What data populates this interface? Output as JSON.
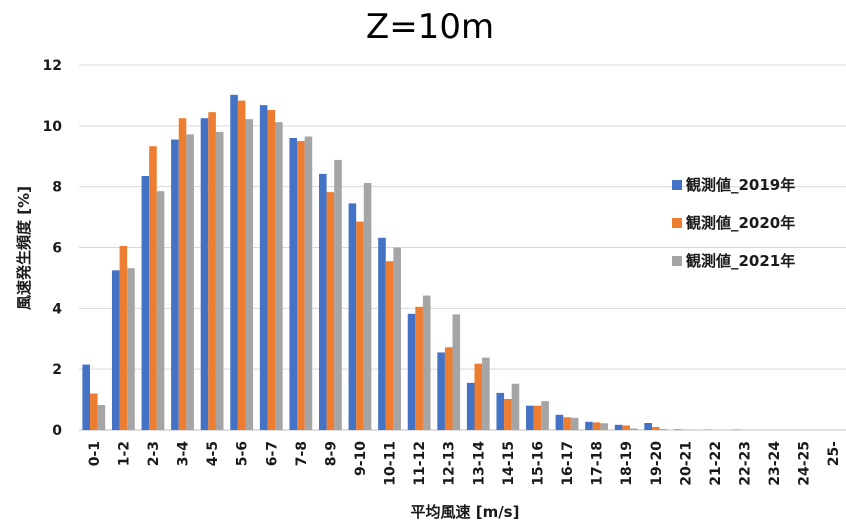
{
  "chart_data": {
    "type": "bar",
    "title": "Z=10m",
    "xlabel": "平均風速 [m/s]",
    "ylabel": "風速発生頻度 [%]",
    "ylim": [
      0,
      12
    ],
    "yticks": [
      0,
      2,
      4,
      6,
      8,
      10,
      12
    ],
    "grid": true,
    "legend_position": "right",
    "categories": [
      "0-1",
      "1-2",
      "2-3",
      "3-4",
      "4-5",
      "5-6",
      "6-7",
      "7-8",
      "8-9",
      "9-10",
      "10-11",
      "11-12",
      "12-13",
      "13-14",
      "14-15",
      "15-16",
      "16-17",
      "17-18",
      "18-19",
      "19-20",
      "20-21",
      "21-22",
      "22-23",
      "23-24",
      "24-25",
      "25-"
    ],
    "series": [
      {
        "name": "観測値_2019年",
        "color": "#4472c4",
        "values": [
          2.15,
          5.25,
          8.35,
          9.55,
          10.25,
          11.02,
          10.68,
          9.6,
          8.42,
          7.45,
          6.32,
          3.82,
          2.55,
          1.55,
          1.22,
          0.8,
          0.5,
          0.27,
          0.17,
          0.23,
          0.02,
          0.01,
          0.01,
          0,
          0,
          0
        ]
      },
      {
        "name": "観測値_2020年",
        "color": "#ed7d31",
        "values": [
          1.2,
          6.05,
          9.33,
          10.25,
          10.45,
          10.83,
          10.52,
          9.5,
          7.82,
          6.85,
          5.55,
          4.05,
          2.72,
          2.18,
          1.02,
          0.8,
          0.42,
          0.25,
          0.15,
          0.1,
          0.01,
          0,
          0,
          0,
          0,
          0
        ]
      },
      {
        "name": "観測値_2021年",
        "color": "#a5a5a5",
        "values": [
          0.82,
          5.32,
          7.85,
          9.72,
          9.8,
          10.22,
          10.12,
          9.65,
          8.88,
          8.12,
          6.0,
          4.42,
          3.8,
          2.38,
          1.52,
          0.95,
          0.4,
          0.22,
          0.05,
          0.03,
          0.01,
          0,
          0,
          0,
          0,
          0
        ]
      }
    ]
  }
}
